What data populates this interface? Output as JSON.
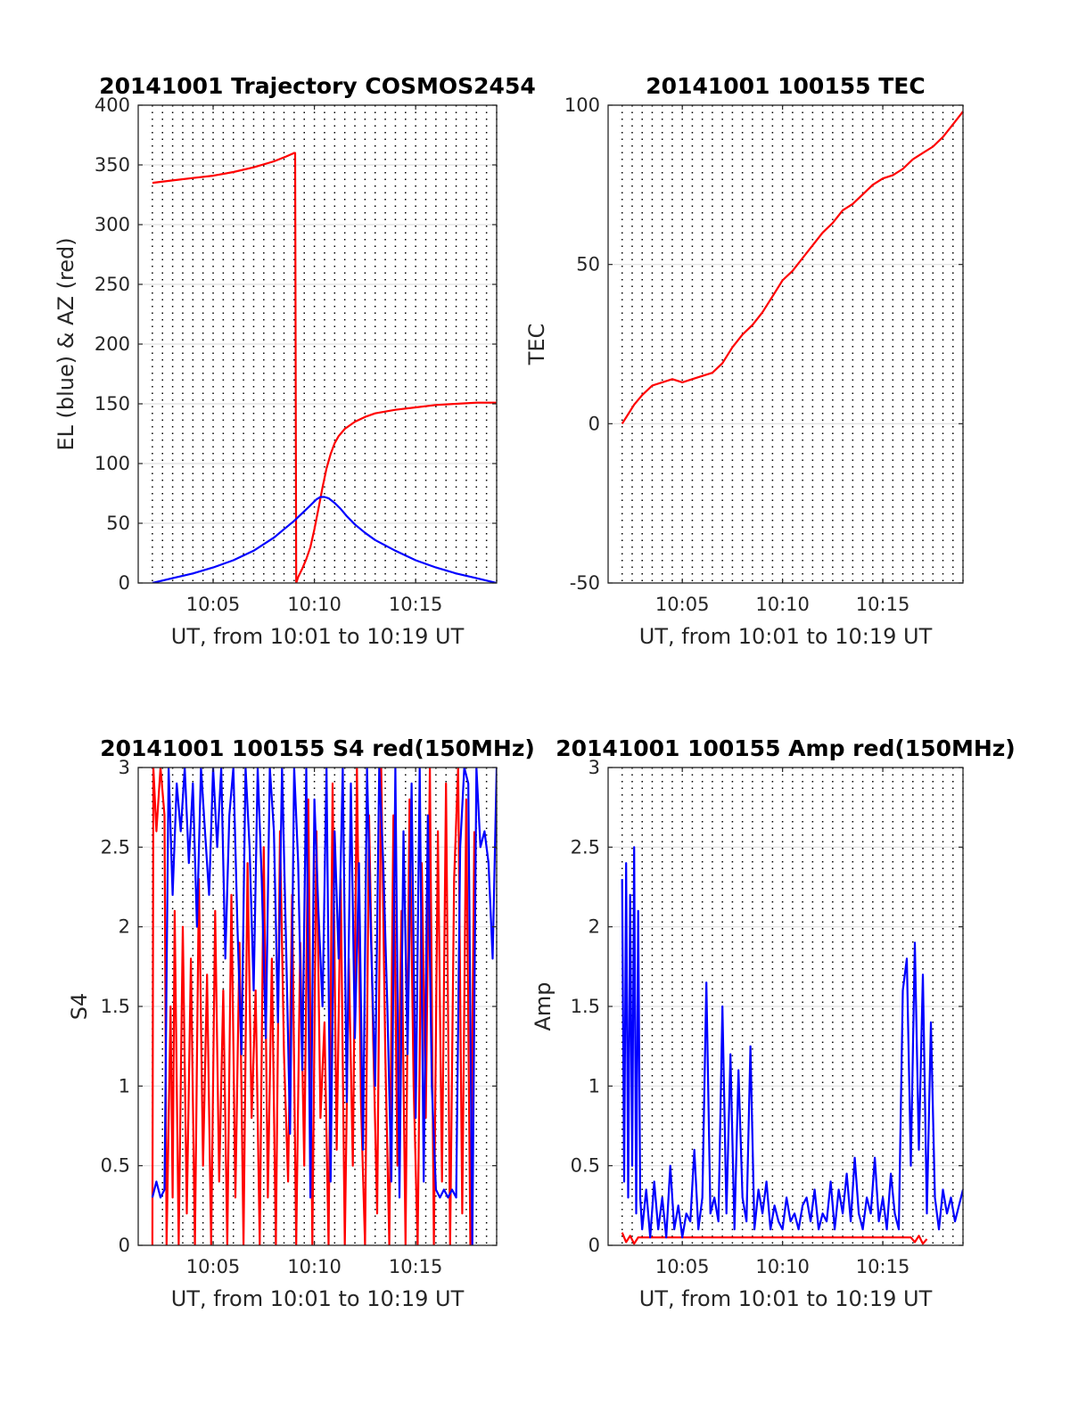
{
  "chart_data": [
    {
      "type": "line",
      "title": "20141001 Trajectory COSMOS2454",
      "xlabel": "UT, from 10:01 to 10:19 UT",
      "ylabel": "EL (blue) & AZ (red)",
      "xlim": [
        1.3,
        19.0
      ],
      "ylim": [
        0,
        400
      ],
      "xticks": [
        5,
        10,
        15
      ],
      "xtick_labels": [
        "10:05",
        "10:10",
        "10:15"
      ],
      "yticks": [
        0,
        50,
        100,
        150,
        200,
        250,
        300,
        350,
        400
      ],
      "ytick_labels": [
        "0",
        "50",
        "100",
        "150",
        "200",
        "250",
        "300",
        "350",
        "400"
      ],
      "grid": "horizontal solid, vertical dotted every 30 s",
      "series": [
        {
          "color": "#ff0000",
          "x": [
            2.0,
            3.0,
            4.0,
            5.0,
            6.0,
            7.0,
            8.0,
            8.6,
            9.0,
            9.05,
            9.1,
            9.2,
            9.4,
            9.6,
            9.8,
            10.0,
            10.2,
            10.4,
            10.6,
            10.8,
            11.0,
            11.2,
            11.5,
            12.0,
            12.5,
            13.0,
            14.0,
            15.0,
            16.0,
            17.0,
            18.0,
            19.0
          ],
          "y": [
            335,
            337,
            339,
            341,
            344,
            348,
            353,
            357,
            360,
            360,
            0,
            5,
            12,
            20,
            30,
            45,
            62,
            80,
            96,
            108,
            117,
            123,
            129,
            135,
            139,
            142,
            145,
            147,
            149,
            150,
            151,
            151
          ]
        },
        {
          "color": "#0000ff",
          "x": [
            2.0,
            3.0,
            4.0,
            5.0,
            6.0,
            7.0,
            8.0,
            8.5,
            9.0,
            9.5,
            9.8,
            10.1,
            10.3,
            10.5,
            10.7,
            11.0,
            11.3,
            11.6,
            12.0,
            12.5,
            13.0,
            14.0,
            15.0,
            16.0,
            17.0,
            18.0,
            19.0
          ],
          "y": [
            0,
            4,
            8,
            13,
            19,
            27,
            38,
            45,
            52,
            60,
            65,
            70,
            72,
            72,
            71,
            67,
            62,
            56,
            49,
            42,
            36,
            27,
            19,
            13,
            8,
            4,
            0
          ]
        }
      ]
    },
    {
      "type": "line",
      "title": "20141001 100155 TEC",
      "xlabel": "UT, from 10:01 to 10:19 UT",
      "ylabel": "TEC",
      "xlim": [
        1.3,
        19.0
      ],
      "ylim": [
        -50,
        100
      ],
      "xticks": [
        5,
        10,
        15
      ],
      "xtick_labels": [
        "10:05",
        "10:10",
        "10:15"
      ],
      "yticks": [
        -50,
        0,
        50,
        100
      ],
      "ytick_labels": [
        "-50",
        "0",
        "50",
        "100"
      ],
      "grid": "horizontal solid, vertical dotted every 30 s",
      "series": [
        {
          "color": "#ff0000",
          "x": [
            2.0,
            2.3,
            2.6,
            3.0,
            3.5,
            4.0,
            4.5,
            5.0,
            5.5,
            6.0,
            6.5,
            7.0,
            7.5,
            8.0,
            8.5,
            9.0,
            9.5,
            10.0,
            10.5,
            11.0,
            11.5,
            12.0,
            12.5,
            13.0,
            13.5,
            14.0,
            14.5,
            15.0,
            15.5,
            16.0,
            16.5,
            17.0,
            17.5,
            18.0,
            18.5,
            19.0
          ],
          "y": [
            0,
            3,
            6,
            9,
            12,
            13,
            14,
            13,
            14,
            15,
            16,
            19,
            24,
            28,
            31,
            35,
            40,
            45,
            48,
            52,
            56,
            60,
            63,
            67,
            69,
            72,
            75,
            77,
            78,
            80,
            83,
            85,
            87,
            90,
            94,
            98
          ]
        }
      ]
    },
    {
      "type": "line",
      "title": "20141001 100155 S4 red(150MHz)",
      "xlabel": "UT, from 10:01 to 10:19 UT",
      "ylabel": "S4",
      "xlim": [
        1.3,
        19.0
      ],
      "ylim": [
        0,
        3
      ],
      "xticks": [
        5,
        10,
        15
      ],
      "xtick_labels": [
        "10:05",
        "10:10",
        "10:15"
      ],
      "yticks": [
        0,
        0.5,
        1,
        1.5,
        2,
        2.5,
        3
      ],
      "ytick_labels": [
        "0",
        "0.5",
        "1",
        "1.5",
        "2",
        "2.5",
        "3"
      ],
      "grid": "horizontal solid, vertical dotted every 30 s",
      "series": [
        {
          "color": "#ff0000",
          "x": [
            2.0,
            2.05,
            2.2,
            2.4,
            2.6,
            2.7,
            2.9,
            3.0,
            3.1,
            3.3,
            3.5,
            3.7,
            3.9,
            4.1,
            4.3,
            4.5,
            4.7,
            4.9,
            5.1,
            5.3,
            5.5,
            5.7,
            5.9,
            6.1,
            6.3,
            6.5,
            6.7,
            6.9,
            7.1,
            7.3,
            7.5,
            7.7,
            7.9,
            8.1,
            8.3,
            8.5,
            8.7,
            8.9,
            9.1,
            9.3,
            9.5,
            9.7,
            9.9,
            10.1,
            10.3,
            10.5,
            10.7,
            10.9,
            11.1,
            11.3,
            11.5,
            11.7,
            11.9,
            12.1,
            12.3,
            12.5,
            12.7,
            12.9,
            13.1,
            13.3,
            13.5,
            13.7,
            13.9,
            14.1,
            14.3,
            14.5,
            14.7,
            14.9,
            15.1,
            15.3,
            15.5,
            15.7,
            15.9,
            16.1,
            16.3,
            16.5,
            16.7,
            16.9,
            17.1,
            17.3,
            17.5,
            17.7,
            17.9
          ],
          "y": [
            0,
            3,
            2.6,
            3,
            2.7,
            0,
            1.5,
            0.3,
            2.1,
            0,
            2.0,
            0.2,
            1.8,
            0,
            2.3,
            0.5,
            1.7,
            0,
            2.1,
            0.4,
            1.6,
            0,
            2.2,
            0.3,
            1.9,
            0,
            2.4,
            0.8,
            1.6,
            0,
            2.5,
            0.3,
            1.8,
            0,
            2.6,
            1.2,
            0.4,
            2.2,
            0,
            1.9,
            0.5,
            2.8,
            0,
            2.6,
            0.8,
            1.4,
            0,
            2.9,
            0.6,
            2.3,
            0,
            1.8,
            0.5,
            3,
            0.9,
            0,
            2.7,
            1.3,
            0.2,
            3,
            1.2,
            0,
            2.7,
            0.5,
            2.1,
            0,
            2.8,
            1.0,
            0,
            2.4,
            0.8,
            3,
            0,
            2.6,
            0.4,
            2.9,
            0,
            2.3,
            3,
            0.2,
            2.8,
            0,
            2.6
          ]
        },
        {
          "color": "#0000ff",
          "x": [
            2.0,
            2.2,
            2.4,
            2.6,
            2.8,
            3.0,
            3.2,
            3.4,
            3.6,
            3.8,
            4.0,
            4.2,
            4.4,
            4.6,
            4.8,
            5.0,
            5.2,
            5.4,
            5.6,
            5.8,
            6.0,
            6.2,
            6.4,
            6.6,
            6.8,
            7.0,
            7.2,
            7.4,
            7.6,
            7.8,
            8.0,
            8.2,
            8.4,
            8.6,
            8.8,
            9.0,
            9.2,
            9.4,
            9.6,
            9.8,
            10.0,
            10.2,
            10.4,
            10.6,
            10.8,
            11.0,
            11.2,
            11.4,
            11.6,
            11.8,
            12.0,
            12.2,
            12.4,
            12.6,
            12.8,
            13.0,
            13.2,
            13.4,
            13.6,
            13.8,
            14.0,
            14.2,
            14.4,
            14.6,
            14.8,
            15.0,
            15.2,
            15.4,
            15.6,
            15.8,
            16.0,
            16.2,
            16.4,
            16.6,
            16.8,
            17.0,
            17.2,
            17.4,
            17.6,
            17.8,
            18.0,
            18.2,
            18.4,
            18.6,
            18.8,
            19.0
          ],
          "y": [
            0.3,
            0.4,
            0.3,
            0.35,
            3,
            2.2,
            2.9,
            2.6,
            3,
            2.4,
            2.9,
            2.0,
            3,
            2.6,
            2.2,
            3,
            2.5,
            3,
            1.8,
            2.7,
            3,
            2.0,
            1.2,
            3,
            2.5,
            1.6,
            3,
            2.3,
            1.3,
            3,
            2.6,
            1.4,
            3,
            1.9,
            0.7,
            3,
            2.4,
            1.1,
            3,
            0.3,
            2.8,
            2.1,
            1.5,
            3,
            0.4,
            2.6,
            1.8,
            3,
            0.9,
            2.9,
            1.3,
            2.4,
            0.6,
            3,
            1.9,
            1.0,
            3,
            2.4,
            1.5,
            0.4,
            3,
            0.3,
            2.6,
            1.2,
            2.9,
            0.8,
            3,
            0.4,
            2.7,
            1.0,
            0.35,
            0.3,
            0.35,
            0.3,
            0.35,
            0.3,
            2.5,
            3,
            2.9,
            0,
            3,
            2.5,
            2.6,
            2.4,
            1.8,
            3
          ]
        }
      ]
    },
    {
      "type": "line",
      "title": "20141001 100155 Amp red(150MHz)",
      "xlabel": "UT, from 10:01 to 10:19 UT",
      "ylabel": "Amp",
      "xlim": [
        1.3,
        19.0
      ],
      "ylim": [
        0,
        3
      ],
      "xticks": [
        5,
        10,
        15
      ],
      "xtick_labels": [
        "10:05",
        "10:10",
        "10:15"
      ],
      "yticks": [
        0,
        0.5,
        1,
        1.5,
        2,
        2.5,
        3
      ],
      "ytick_labels": [
        "0",
        "0.5",
        "1",
        "1.5",
        "2",
        "2.5",
        "3"
      ],
      "grid": "horizontal solid, vertical dotted every 30 s",
      "series": [
        {
          "color": "#ff0000",
          "x": [
            2.0,
            2.2,
            2.4,
            2.6,
            2.8,
            16.4,
            16.6,
            16.8,
            17.0,
            17.2
          ],
          "y": [
            0.08,
            0.02,
            0.06,
            0.01,
            0.05,
            0.05,
            0.02,
            0.06,
            0.01,
            0.04
          ]
        },
        {
          "color": "#0000ff",
          "x": [
            2.0,
            2.1,
            2.2,
            2.3,
            2.4,
            2.5,
            2.6,
            2.7,
            2.8,
            2.9,
            3.0,
            3.2,
            3.4,
            3.6,
            3.8,
            4.0,
            4.2,
            4.4,
            4.6,
            4.8,
            5.0,
            5.2,
            5.4,
            5.6,
            5.8,
            6.0,
            6.2,
            6.4,
            6.6,
            6.8,
            7.0,
            7.2,
            7.4,
            7.6,
            7.8,
            8.0,
            8.2,
            8.4,
            8.6,
            8.8,
            9.0,
            9.2,
            9.4,
            9.6,
            9.8,
            10.0,
            10.2,
            10.4,
            10.6,
            10.8,
            11.0,
            11.2,
            11.4,
            11.6,
            11.8,
            12.0,
            12.2,
            12.4,
            12.6,
            12.8,
            13.0,
            13.2,
            13.4,
            13.6,
            13.8,
            14.0,
            14.2,
            14.4,
            14.6,
            14.8,
            15.0,
            15.2,
            15.4,
            15.6,
            15.8,
            16.0,
            16.2,
            16.4,
            16.6,
            16.8,
            17.0,
            17.2,
            17.4,
            17.6,
            17.8,
            18.0,
            18.2,
            18.4,
            18.6,
            18.8,
            19.0
          ],
          "y": [
            2.3,
            0.4,
            2.4,
            0.3,
            2.2,
            0.5,
            2.5,
            0.2,
            2.1,
            0.3,
            0.1,
            0.35,
            0.05,
            0.4,
            0.1,
            0.3,
            0.05,
            0.5,
            0.1,
            0.25,
            0.05,
            0.2,
            0.15,
            0.6,
            0.1,
            0.3,
            1.65,
            0.2,
            0.3,
            0.15,
            1.5,
            0.2,
            1.2,
            0.1,
            1.1,
            0.3,
            0.15,
            1.25,
            0.1,
            0.35,
            0.2,
            0.4,
            0.1,
            0.25,
            0.15,
            0.1,
            0.3,
            0.15,
            0.2,
            0.1,
            0.25,
            0.3,
            0.15,
            0.35,
            0.1,
            0.2,
            0.15,
            0.4,
            0.1,
            0.35,
            0.2,
            0.45,
            0.15,
            0.55,
            0.2,
            0.1,
            0.3,
            0.2,
            0.55,
            0.15,
            0.3,
            0.1,
            0.45,
            0.2,
            0.1,
            1.6,
            1.8,
            0.5,
            1.9,
            0.6,
            1.7,
            0.2,
            1.4,
            0.3,
            0.1,
            0.35,
            0.2,
            0.3,
            0.15,
            0.25,
            0.35
          ]
        }
      ]
    }
  ]
}
